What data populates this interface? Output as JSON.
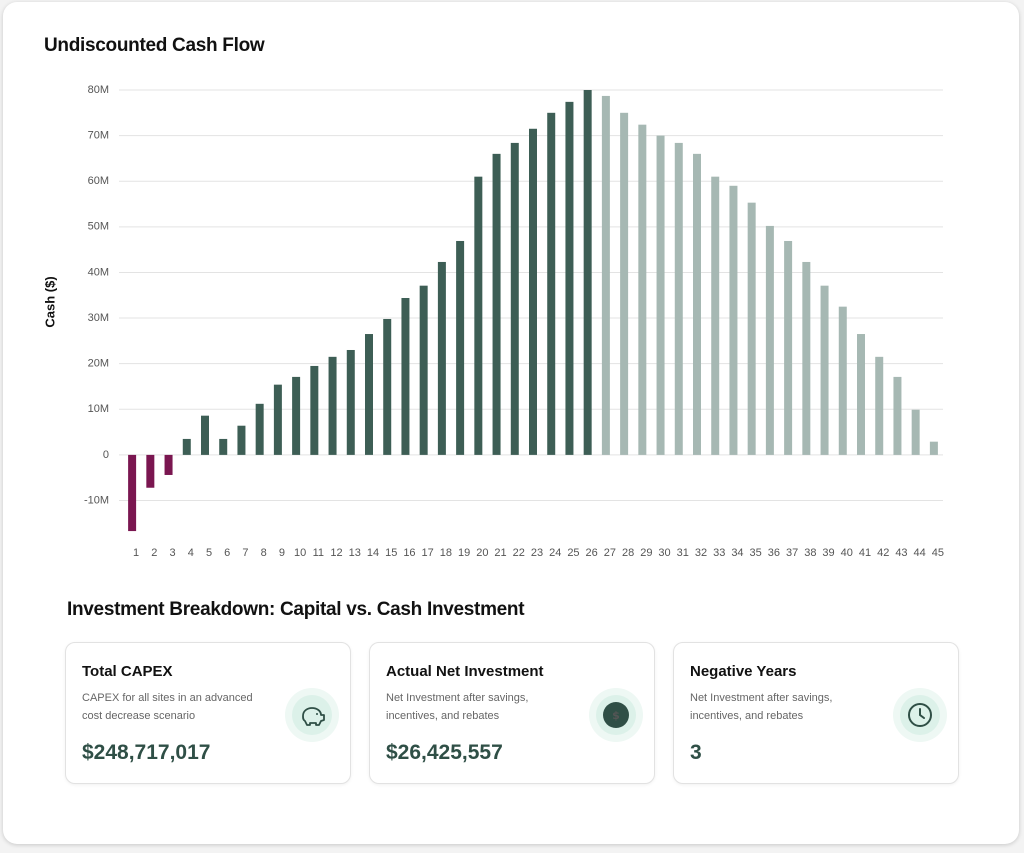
{
  "chart_data": {
    "type": "bar",
    "title": "Undiscounted Cash Flow",
    "ylabel": "Cash ($)",
    "categories": [
      "1",
      "2",
      "3",
      "4",
      "5",
      "6",
      "7",
      "8",
      "9",
      "10",
      "11",
      "12",
      "13",
      "14",
      "15",
      "16",
      "17",
      "18",
      "19",
      "20",
      "21",
      "22",
      "23",
      "24",
      "25",
      "26",
      "27",
      "28",
      "29",
      "30",
      "31",
      "32",
      "33",
      "34",
      "35",
      "36",
      "37",
      "38",
      "39",
      "40",
      "41",
      "42",
      "43",
      "44",
      "45"
    ],
    "values": [
      -16.7,
      -7.2,
      -4.4,
      3.5,
      8.6,
      3.5,
      6.4,
      11.2,
      15.4,
      17.1,
      19.5,
      21.5,
      23.0,
      26.5,
      29.8,
      34.4,
      37.1,
      42.3,
      46.9,
      61.0,
      66.0,
      68.4,
      71.5,
      75.0,
      77.4,
      80.0,
      78.7,
      75.0,
      72.4,
      70.0,
      68.4,
      66.0,
      61.0,
      59.0,
      55.3,
      50.2,
      46.9,
      42.3,
      37.1,
      32.5,
      26.5,
      21.5,
      17.1,
      9.9,
      2.9
    ],
    "colors": [
      "#7a1650",
      "#7a1650",
      "#7a1650",
      "#3d5e55",
      "#3d5e55",
      "#3d5e55",
      "#3d5e55",
      "#3d5e55",
      "#3d5e55",
      "#3d5e55",
      "#3d5e55",
      "#3d5e55",
      "#3d5e55",
      "#3d5e55",
      "#3d5e55",
      "#3d5e55",
      "#3d5e55",
      "#3d5e55",
      "#3d5e55",
      "#3d5e55",
      "#3d5e55",
      "#3d5e55",
      "#3d5e55",
      "#3d5e55",
      "#3d5e55",
      "#3d5e55",
      "#a6b8b3",
      "#a6b8b3",
      "#a6b8b3",
      "#a6b8b3",
      "#a6b8b3",
      "#a6b8b3",
      "#a6b8b3",
      "#a6b8b3",
      "#a6b8b3",
      "#a6b8b3",
      "#a6b8b3",
      "#a6b8b3",
      "#a6b8b3",
      "#a6b8b3",
      "#a6b8b3",
      "#a6b8b3",
      "#a6b8b3",
      "#a6b8b3",
      "#a6b8b3"
    ],
    "ylim": [
      -18,
      80
    ],
    "yticks": [
      {
        "value": -10,
        "label": "-10M"
      },
      0,
      {
        "value": 10,
        "label": "10M"
      },
      {
        "value": 20,
        "label": "20M"
      },
      {
        "value": 30,
        "label": "30M"
      },
      {
        "value": 40,
        "label": "40M"
      },
      {
        "value": 50,
        "label": "50M"
      },
      {
        "value": 60,
        "label": "60M"
      },
      {
        "value": 70,
        "label": "70M"
      },
      {
        "value": 80,
        "label": "80M"
      }
    ],
    "grid": true
  },
  "breakdown": {
    "title": "Investment Breakdown: Capital vs. Cash Investment",
    "cards": [
      {
        "title": "Total CAPEX",
        "description": "CAPEX for all sites in an advanced cost decrease scenario",
        "value": "$248,717,017"
      },
      {
        "title": "Actual Net Investment",
        "description": "Net Investment after savings, incentives, and rebates",
        "value": "$26,425,557"
      },
      {
        "title": "Negative Years",
        "description": "Net Investment after savings, incentives, and rebates",
        "value": "3"
      }
    ]
  }
}
